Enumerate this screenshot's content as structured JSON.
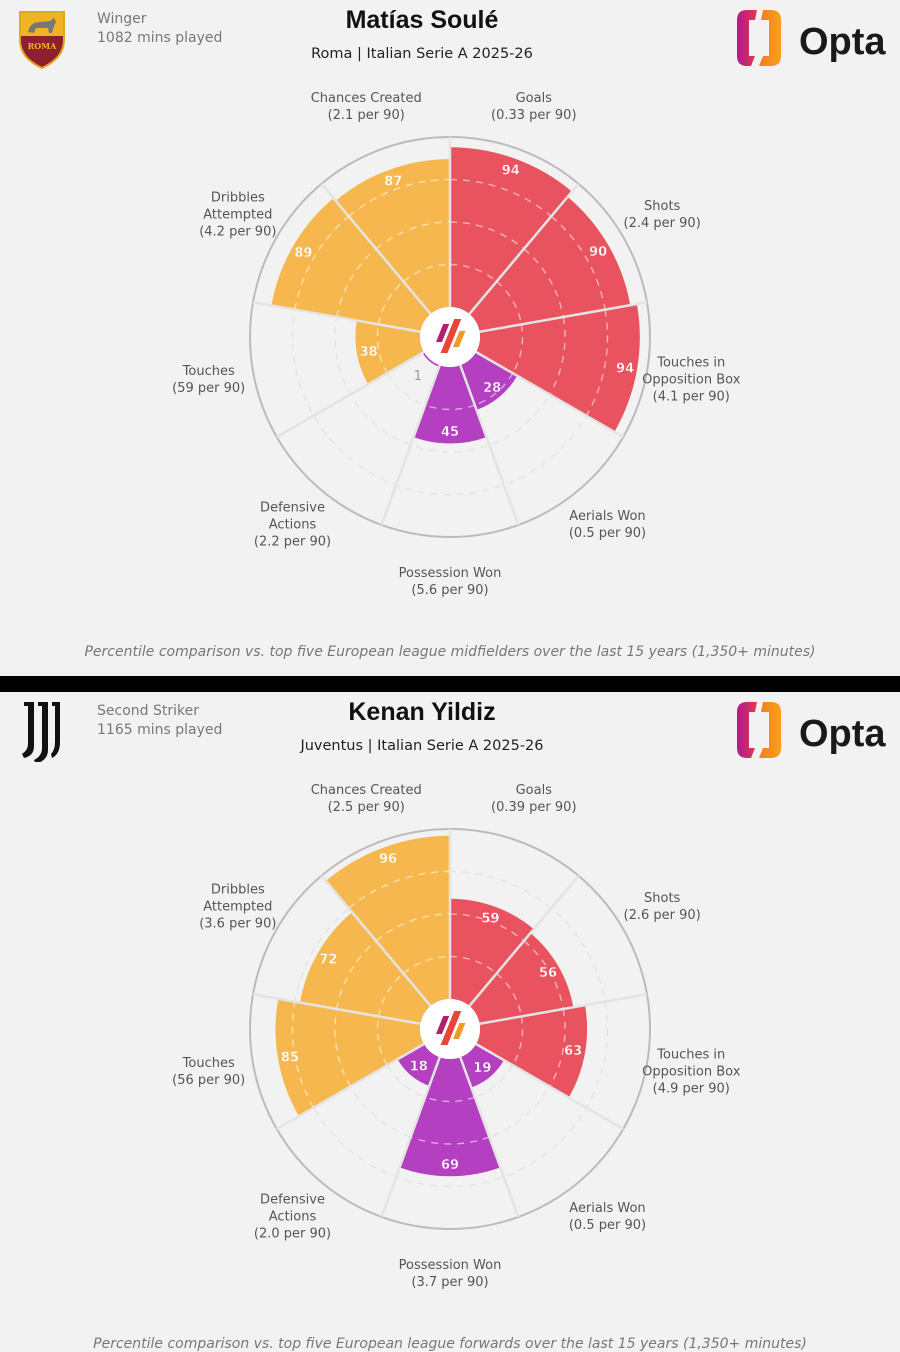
{
  "colors": {
    "attacking": "#e9535f",
    "possession": "#f6b84e",
    "defending": "#b43fc0",
    "background": "#f2f2f2"
  },
  "logo_text": "Opta",
  "players": [
    {
      "club": "Roma",
      "position": "Winger",
      "minutes": "1082 mins played",
      "name": "Matías Soulé",
      "subtitle": "Roma | Italian Serie A 2025-26",
      "footer": "Percentile comparison vs. top five European league midfielders over the last 15 years (1,350+ minutes)"
    },
    {
      "club": "Juventus",
      "position": "Second Striker",
      "minutes": "1165 mins played",
      "name": "Kenan Yildiz",
      "subtitle": "Juventus | Italian Serie A 2025-26",
      "footer": "Percentile comparison vs. top five European league forwards over the last 15 years (1,350+ minutes)"
    }
  ],
  "chart_data": [
    {
      "type": "polar-bar",
      "title": "Matías Soulé",
      "rlim": [
        0,
        100
      ],
      "categories": [
        "Goals",
        "Shots",
        "Touches in Opposition Box",
        "Aerials Won",
        "Possession Won",
        "Defensive Actions",
        "Touches",
        "Dribbles Attempted",
        "Chances Created"
      ],
      "labels": [
        [
          "Goals",
          "(0.33 per 90)"
        ],
        [
          "Shots",
          "(2.4 per 90)"
        ],
        [
          "Touches in",
          "Opposition Box",
          "(4.1 per 90)"
        ],
        [
          "Aerials Won",
          "(0.5 per 90)"
        ],
        [
          "Possession Won",
          "(5.6 per 90)"
        ],
        [
          "Defensive",
          "Actions",
          "(2.2 per 90)"
        ],
        [
          "Touches",
          "(59 per 90)"
        ],
        [
          "Dribbles",
          "Attempted",
          "(4.2 per 90)"
        ],
        [
          "Chances Created",
          "(2.1 per 90)"
        ]
      ],
      "groups": [
        "attacking",
        "attacking",
        "attacking",
        "defending",
        "defending",
        "defending",
        "possession",
        "possession",
        "possession"
      ],
      "values": [
        94,
        90,
        94,
        28,
        45,
        1,
        38,
        89,
        87
      ]
    },
    {
      "type": "polar-bar",
      "title": "Kenan Yildiz",
      "rlim": [
        0,
        100
      ],
      "categories": [
        "Goals",
        "Shots",
        "Touches in Opposition Box",
        "Aerials Won",
        "Possession Won",
        "Defensive Actions",
        "Touches",
        "Dribbles Attempted",
        "Chances Created"
      ],
      "labels": [
        [
          "Goals",
          "(0.39 per 90)"
        ],
        [
          "Shots",
          "(2.6 per 90)"
        ],
        [
          "Touches in",
          "Opposition Box",
          "(4.9 per 90)"
        ],
        [
          "Aerials Won",
          "(0.5 per 90)"
        ],
        [
          "Possession Won",
          "(3.7 per 90)"
        ],
        [
          "Defensive",
          "Actions",
          "(2.0 per 90)"
        ],
        [
          "Touches",
          "(56 per 90)"
        ],
        [
          "Dribbles",
          "Attempted",
          "(3.6 per 90)"
        ],
        [
          "Chances Created",
          "(2.5 per 90)"
        ]
      ],
      "groups": [
        "attacking",
        "attacking",
        "attacking",
        "defending",
        "defending",
        "defending",
        "possession",
        "possession",
        "possession"
      ],
      "values": [
        59,
        56,
        63,
        19,
        69,
        18,
        85,
        72,
        96
      ]
    }
  ]
}
